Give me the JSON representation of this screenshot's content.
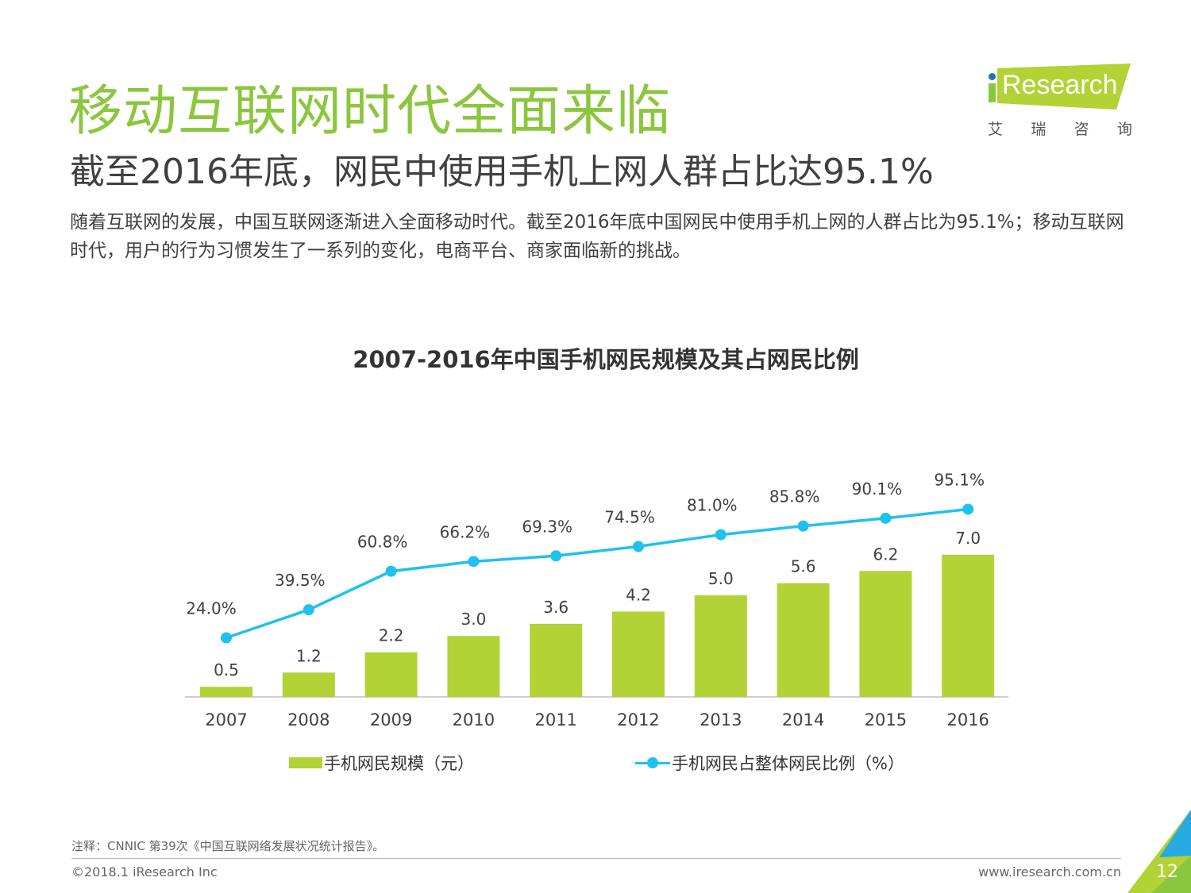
{
  "header": {
    "title": "移动互联网时代全面来临",
    "subtitle": "截至2016年底，网民中使用手机上网人群占比达95.1%",
    "description": "随着互联网的发展，中国互联网逐渐进入全面移动时代。截至2016年底中国网民中使用手机上网的人群占比为95.1%；移动互联网时代，用户的行为习惯发生了一系列的变化，电商平台、商家面临新的挑战。"
  },
  "logo": {
    "brand": "Research",
    "cn": [
      "艾",
      "瑞",
      "咨",
      "询"
    ]
  },
  "chart_data": {
    "type": "bar",
    "title": "2007-2016年中国手机网民规模及其占网民比例",
    "categories": [
      "2007",
      "2008",
      "2009",
      "2010",
      "2011",
      "2012",
      "2013",
      "2014",
      "2015",
      "2016"
    ],
    "series": [
      {
        "name": "手机网民规模（元）",
        "type": "bar",
        "values": [
          0.5,
          1.2,
          2.2,
          3.0,
          3.6,
          4.2,
          5.0,
          5.6,
          6.2,
          7.0
        ],
        "labels": [
          "0.5",
          "1.2",
          "2.2",
          "3.0",
          "3.6",
          "4.2",
          "5.0",
          "5.6",
          "6.2",
          "7.0"
        ],
        "color": "#b2d235"
      },
      {
        "name": "手机网民占整体网民比例（%）",
        "type": "line",
        "values": [
          24.0,
          39.5,
          60.8,
          66.2,
          69.3,
          74.5,
          81.0,
          85.8,
          90.1,
          95.1
        ],
        "labels": [
          "24.0%",
          "39.5%",
          "60.8%",
          "66.2%",
          "69.3%",
          "74.5%",
          "81.0%",
          "85.8%",
          "90.1%",
          "95.1%"
        ],
        "color": "#1fc1ee"
      }
    ],
    "legend_position": "bottom",
    "grid": false
  },
  "footer": {
    "note": "注释：CNNIC 第39次《中国互联网络发展状况统计报告》。",
    "copyright": "©2018.1 iResearch Inc",
    "website": "www.iresearch.com.cn",
    "page": "12"
  },
  "colors": {
    "title": "#8cc63f",
    "bar": "#b2d235",
    "line": "#1fc1ee",
    "corner_light": "#b2d235",
    "corner_dark": "#8cc63f",
    "corner_accent": "#27aae1"
  }
}
